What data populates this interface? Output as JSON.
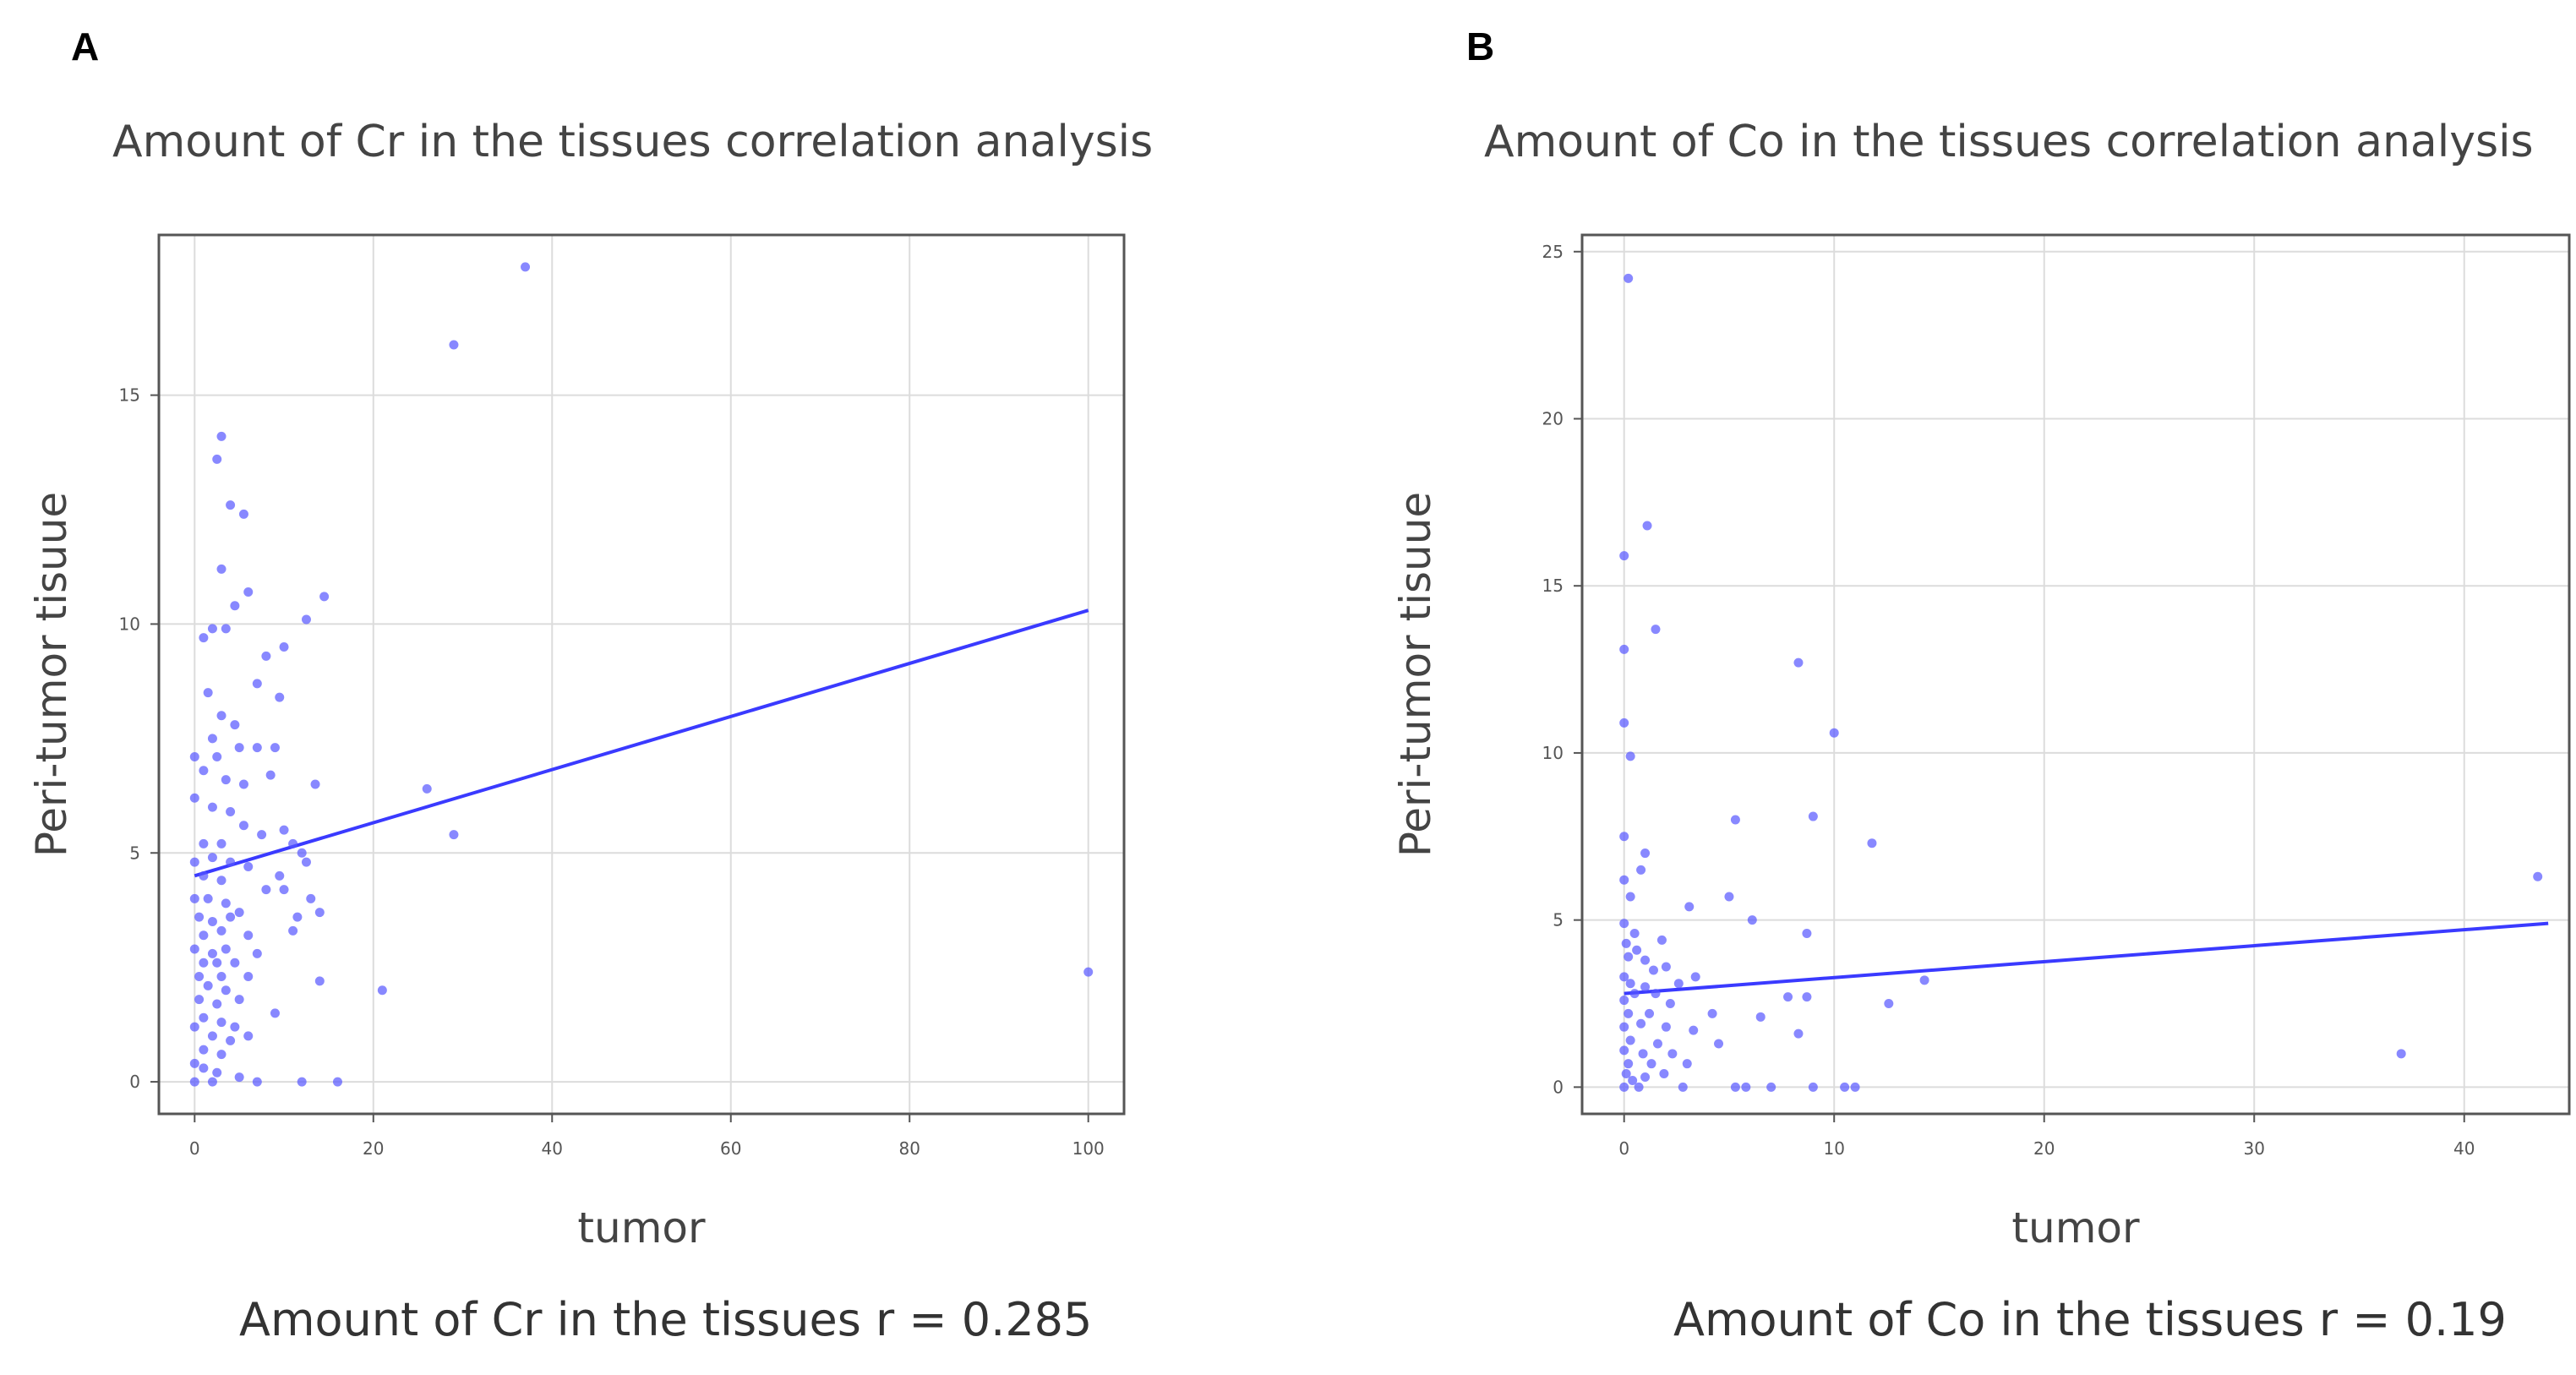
{
  "panels": [
    {
      "letter": "A",
      "title": "Amount of Cr in the tissues correlation analysis",
      "caption": "Amount of Cr in the tissues r = 0.285"
    },
    {
      "letter": "B",
      "title": "Amount of Co in the tissues correlation analysis",
      "caption": "Amount of Co in the tissues r = 0.19"
    }
  ],
  "chart_data": [
    {
      "type": "scatter",
      "title": "Amount of Cr in the tissues correlation analysis",
      "xlabel": "tumor",
      "ylabel": "Peri-tumor tisuue",
      "xlim": [
        -4,
        104
      ],
      "ylim": [
        -0.7,
        18.5
      ],
      "xticks": [
        0,
        20,
        40,
        60,
        80,
        100
      ],
      "yticks": [
        0,
        5,
        10,
        15
      ],
      "grid": true,
      "point_color": "#5555ff",
      "line_color": "#3a3aff",
      "trend_line": [
        [
          0,
          4.5
        ],
        [
          100,
          10.3
        ]
      ],
      "points": [
        [
          37,
          17.8
        ],
        [
          29,
          16.1
        ],
        [
          3,
          14.1
        ],
        [
          2.5,
          13.6
        ],
        [
          4,
          12.6
        ],
        [
          5.5,
          12.4
        ],
        [
          3,
          11.2
        ],
        [
          6,
          10.7
        ],
        [
          14.5,
          10.6
        ],
        [
          12.5,
          10.1
        ],
        [
          4.5,
          10.4
        ],
        [
          2,
          9.9
        ],
        [
          3.5,
          9.9
        ],
        [
          1,
          9.7
        ],
        [
          10,
          9.5
        ],
        [
          8,
          9.3
        ],
        [
          1.5,
          8.5
        ],
        [
          7,
          8.7
        ],
        [
          9.5,
          8.4
        ],
        [
          3,
          8
        ],
        [
          4.5,
          7.8
        ],
        [
          2,
          7.5
        ],
        [
          5,
          7.3
        ],
        [
          7,
          7.3
        ],
        [
          9,
          7.3
        ],
        [
          0,
          7.1
        ],
        [
          2.5,
          7.1
        ],
        [
          1,
          6.8
        ],
        [
          3.5,
          6.6
        ],
        [
          5.5,
          6.5
        ],
        [
          8.5,
          6.7
        ],
        [
          13.5,
          6.5
        ],
        [
          26,
          6.4
        ],
        [
          0,
          6.2
        ],
        [
          2,
          6
        ],
        [
          4,
          5.9
        ],
        [
          5.5,
          5.6
        ],
        [
          7.5,
          5.4
        ],
        [
          10,
          5.5
        ],
        [
          1,
          5.2
        ],
        [
          3,
          5.2
        ],
        [
          11,
          5.2
        ],
        [
          12,
          5
        ],
        [
          29,
          5.4
        ],
        [
          0,
          4.8
        ],
        [
          2,
          4.9
        ],
        [
          4,
          4.8
        ],
        [
          6,
          4.7
        ],
        [
          9.5,
          4.5
        ],
        [
          12.5,
          4.8
        ],
        [
          1,
          4.5
        ],
        [
          3,
          4.4
        ],
        [
          8,
          4.2
        ],
        [
          10,
          4.2
        ],
        [
          0,
          4
        ],
        [
          1.5,
          4
        ],
        [
          3.5,
          3.9
        ],
        [
          5,
          3.7
        ],
        [
          13,
          4
        ],
        [
          14,
          3.7
        ],
        [
          0.5,
          3.6
        ],
        [
          2,
          3.5
        ],
        [
          4,
          3.6
        ],
        [
          11.5,
          3.6
        ],
        [
          1,
          3.2
        ],
        [
          3,
          3.3
        ],
        [
          6,
          3.2
        ],
        [
          11,
          3.3
        ],
        [
          0,
          2.9
        ],
        [
          2,
          2.8
        ],
        [
          3.5,
          2.9
        ],
        [
          7,
          2.8
        ],
        [
          1,
          2.6
        ],
        [
          2.5,
          2.6
        ],
        [
          4.5,
          2.6
        ],
        [
          100,
          2.4
        ],
        [
          0.5,
          2.3
        ],
        [
          3,
          2.3
        ],
        [
          6,
          2.3
        ],
        [
          14,
          2.2
        ],
        [
          1.5,
          2.1
        ],
        [
          3.5,
          2
        ],
        [
          21,
          2
        ],
        [
          0.5,
          1.8
        ],
        [
          2.5,
          1.7
        ],
        [
          5,
          1.8
        ],
        [
          9,
          1.5
        ],
        [
          1,
          1.4
        ],
        [
          3,
          1.3
        ],
        [
          4.5,
          1.2
        ],
        [
          0,
          1.2
        ],
        [
          2,
          1
        ],
        [
          4,
          0.9
        ],
        [
          6,
          1
        ],
        [
          1,
          0.7
        ],
        [
          3,
          0.6
        ],
        [
          0,
          0.4
        ],
        [
          1,
          0.3
        ],
        [
          2.5,
          0.2
        ],
        [
          5,
          0.1
        ],
        [
          0,
          0
        ],
        [
          2,
          0
        ],
        [
          7,
          0
        ],
        [
          12,
          0
        ],
        [
          16,
          0
        ]
      ]
    },
    {
      "type": "scatter",
      "title": "Amount of Co in the tissues correlation analysis",
      "xlabel": "tumor",
      "ylabel": "Peri-tumor tisuue",
      "xlim": [
        -2,
        45
      ],
      "ylim": [
        -0.8,
        25.5
      ],
      "xticks": [
        0,
        10,
        20,
        30,
        40
      ],
      "yticks": [
        0,
        5,
        10,
        15,
        20,
        25
      ],
      "grid": true,
      "point_color": "#5555ff",
      "line_color": "#3a3aff",
      "trend_line": [
        [
          0,
          2.8
        ],
        [
          44,
          4.9
        ]
      ],
      "points": [
        [
          0.2,
          24.2
        ],
        [
          1.1,
          16.8
        ],
        [
          0,
          15.9
        ],
        [
          1.5,
          13.7
        ],
        [
          0,
          13.1
        ],
        [
          8.3,
          12.7
        ],
        [
          0,
          10.9
        ],
        [
          10,
          10.6
        ],
        [
          0.3,
          9.9
        ],
        [
          0,
          7.5
        ],
        [
          5.3,
          8
        ],
        [
          9,
          8.1
        ],
        [
          11.8,
          7.3
        ],
        [
          1,
          7
        ],
        [
          0.8,
          6.5
        ],
        [
          0,
          6.2
        ],
        [
          0.3,
          5.7
        ],
        [
          5,
          5.7
        ],
        [
          3.1,
          5.4
        ],
        [
          6.1,
          5
        ],
        [
          0,
          4.9
        ],
        [
          0.5,
          4.6
        ],
        [
          8.7,
          4.6
        ],
        [
          1.8,
          4.4
        ],
        [
          0.1,
          4.3
        ],
        [
          0.6,
          4.1
        ],
        [
          0.2,
          3.9
        ],
        [
          1,
          3.8
        ],
        [
          2,
          3.6
        ],
        [
          1.4,
          3.5
        ],
        [
          0,
          3.3
        ],
        [
          3.4,
          3.3
        ],
        [
          14.3,
          3.2
        ],
        [
          0.3,
          3.1
        ],
        [
          1,
          3
        ],
        [
          2.6,
          3.1
        ],
        [
          0.5,
          2.8
        ],
        [
          1.5,
          2.8
        ],
        [
          7.8,
          2.7
        ],
        [
          8.7,
          2.7
        ],
        [
          0,
          2.6
        ],
        [
          2.2,
          2.5
        ],
        [
          12.6,
          2.5
        ],
        [
          0.2,
          2.2
        ],
        [
          1.2,
          2.2
        ],
        [
          4.2,
          2.2
        ],
        [
          6.5,
          2.1
        ],
        [
          0,
          1.8
        ],
        [
          0.8,
          1.9
        ],
        [
          2,
          1.8
        ],
        [
          3.3,
          1.7
        ],
        [
          8.3,
          1.6
        ],
        [
          0.3,
          1.4
        ],
        [
          1.6,
          1.3
        ],
        [
          4.5,
          1.3
        ],
        [
          0,
          1.1
        ],
        [
          0.9,
          1
        ],
        [
          2.3,
          1
        ],
        [
          37,
          1
        ],
        [
          0.2,
          0.7
        ],
        [
          1.3,
          0.7
        ],
        [
          3,
          0.7
        ],
        [
          0.1,
          0.4
        ],
        [
          1,
          0.3
        ],
        [
          0,
          0
        ],
        [
          0.7,
          0
        ],
        [
          2.8,
          0
        ],
        [
          5.3,
          0
        ],
        [
          5.8,
          0
        ],
        [
          7,
          0
        ],
        [
          9,
          0
        ],
        [
          10.5,
          0
        ],
        [
          11,
          0
        ],
        [
          43.5,
          6.3
        ],
        [
          0.4,
          0.2
        ],
        [
          1.9,
          0.4
        ]
      ]
    }
  ]
}
